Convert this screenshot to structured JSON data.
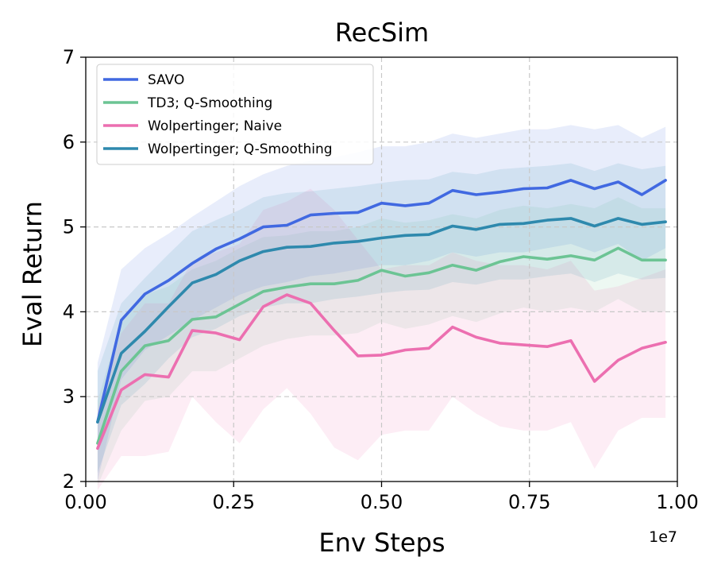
{
  "chart_data": {
    "type": "line",
    "title": "RecSim",
    "xlabel": "Env Steps",
    "ylabel": "Eval Return",
    "x_offset_label": "1e7",
    "xlim": [
      0,
      1.0
    ],
    "ylim": [
      2,
      7
    ],
    "xticks": [
      0.0,
      0.25,
      0.5,
      0.75,
      1.0
    ],
    "xtick_labels": [
      "0.00",
      "0.25",
      "0.50",
      "0.75",
      "1.00"
    ],
    "yticks": [
      2,
      3,
      4,
      5,
      6,
      7
    ],
    "ytick_labels": [
      "2",
      "3",
      "4",
      "5",
      "6",
      "7"
    ],
    "grid": true,
    "legend_position": "top-left",
    "x": [
      0.02,
      0.06,
      0.1,
      0.14,
      0.18,
      0.22,
      0.26,
      0.3,
      0.34,
      0.38,
      0.42,
      0.46,
      0.5,
      0.54,
      0.58,
      0.62,
      0.66,
      0.7,
      0.74,
      0.78,
      0.82,
      0.86,
      0.9,
      0.94,
      0.98
    ],
    "series": [
      {
        "name": "SAVO",
        "color": "#4169e1",
        "values": [
          2.7,
          3.9,
          4.21,
          4.37,
          4.57,
          4.74,
          4.86,
          5.0,
          5.02,
          5.14,
          5.16,
          5.17,
          5.28,
          5.25,
          5.28,
          5.43,
          5.38,
          5.41,
          5.45,
          5.46,
          5.55,
          5.45,
          5.53,
          5.38,
          5.55
        ],
        "lower": [
          2.0,
          3.2,
          3.55,
          3.72,
          3.9,
          4.05,
          4.2,
          4.3,
          4.35,
          4.42,
          4.45,
          4.5,
          4.55,
          4.55,
          4.6,
          4.7,
          4.65,
          4.7,
          4.7,
          4.75,
          4.8,
          4.7,
          4.8,
          4.6,
          4.75
        ],
        "upper": [
          3.4,
          4.5,
          4.75,
          4.92,
          5.12,
          5.3,
          5.48,
          5.62,
          5.72,
          5.78,
          5.82,
          5.88,
          5.95,
          5.95,
          6.0,
          6.1,
          6.05,
          6.1,
          6.15,
          6.15,
          6.2,
          6.15,
          6.2,
          6.05,
          6.18
        ]
      },
      {
        "name": "TD3; Q-Smoothing",
        "color": "#6cc494",
        "values": [
          2.45,
          3.3,
          3.6,
          3.66,
          3.91,
          3.94,
          4.09,
          4.24,
          4.29,
          4.33,
          4.33,
          4.37,
          4.49,
          4.42,
          4.46,
          4.55,
          4.49,
          4.59,
          4.65,
          4.62,
          4.66,
          4.61,
          4.75,
          4.61,
          4.61
        ],
        "lower": [
          1.95,
          2.6,
          2.95,
          3.0,
          3.3,
          3.3,
          3.45,
          3.6,
          3.68,
          3.72,
          3.72,
          3.75,
          3.88,
          3.8,
          3.85,
          3.95,
          3.88,
          3.98,
          4.05,
          4.0,
          4.05,
          4.0,
          4.15,
          4.0,
          4.0
        ],
        "upper": [
          2.95,
          3.9,
          4.2,
          4.3,
          4.5,
          4.6,
          4.75,
          4.88,
          4.9,
          4.95,
          4.95,
          5.0,
          5.1,
          5.05,
          5.08,
          5.15,
          5.1,
          5.2,
          5.25,
          5.22,
          5.27,
          5.22,
          5.35,
          5.22,
          5.22
        ]
      },
      {
        "name": "Wolpertinger; Naive",
        "color": "#ec6fb0",
        "values": [
          2.39,
          3.08,
          3.26,
          3.23,
          3.78,
          3.75,
          3.67,
          4.06,
          4.2,
          4.1,
          3.78,
          3.48,
          3.49,
          3.55,
          3.57,
          3.82,
          3.7,
          3.63,
          3.61,
          3.59,
          3.66,
          3.18,
          3.43,
          3.57,
          3.64
        ],
        "lower": [
          1.9,
          2.3,
          2.3,
          2.35,
          3.0,
          2.7,
          2.45,
          2.85,
          3.1,
          2.8,
          2.4,
          2.25,
          2.55,
          2.6,
          2.6,
          3.0,
          2.8,
          2.65,
          2.6,
          2.6,
          2.7,
          2.15,
          2.6,
          2.75,
          2.75
        ],
        "upper": [
          2.85,
          3.75,
          4.1,
          4.1,
          4.6,
          4.7,
          4.8,
          5.2,
          5.3,
          5.45,
          5.2,
          4.85,
          4.5,
          4.55,
          4.55,
          4.7,
          4.6,
          4.55,
          4.55,
          4.5,
          4.6,
          4.25,
          4.3,
          4.4,
          4.5
        ]
      },
      {
        "name": "Wolpertinger; Q-Smoothing",
        "color": "#2e89ad",
        "values": [
          2.7,
          3.51,
          3.77,
          4.06,
          4.34,
          4.44,
          4.6,
          4.71,
          4.76,
          4.77,
          4.81,
          4.83,
          4.87,
          4.9,
          4.91,
          5.01,
          4.97,
          5.03,
          5.04,
          5.08,
          5.1,
          5.01,
          5.1,
          5.03,
          5.06
        ],
        "lower": [
          2.1,
          2.9,
          3.15,
          3.45,
          3.7,
          3.8,
          3.95,
          4.05,
          4.1,
          4.1,
          4.15,
          4.18,
          4.22,
          4.25,
          4.26,
          4.35,
          4.32,
          4.38,
          4.38,
          4.42,
          4.45,
          4.35,
          4.45,
          4.38,
          4.4
        ],
        "upper": [
          3.3,
          4.1,
          4.4,
          4.68,
          4.95,
          5.08,
          5.2,
          5.35,
          5.4,
          5.42,
          5.45,
          5.48,
          5.52,
          5.55,
          5.56,
          5.65,
          5.62,
          5.68,
          5.7,
          5.72,
          5.75,
          5.66,
          5.75,
          5.68,
          5.72
        ]
      }
    ]
  }
}
